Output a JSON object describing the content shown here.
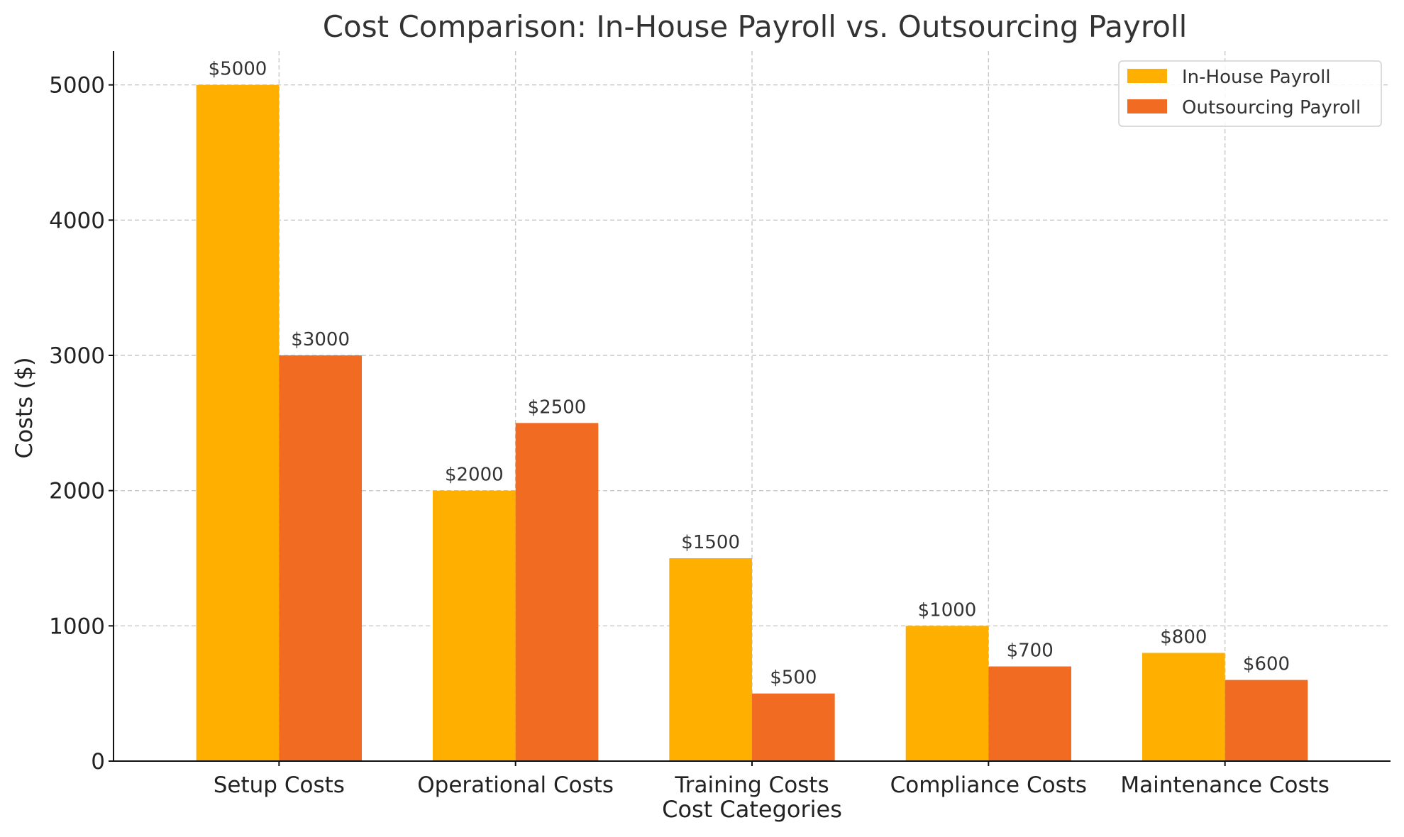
{
  "chart_data": {
    "type": "bar",
    "title": "Cost Comparison: In-House Payroll vs. Outsourcing Payroll",
    "xlabel": "Cost Categories",
    "ylabel": "Costs ($)",
    "categories": [
      "Setup Costs",
      "Operational Costs",
      "Training Costs",
      "Compliance Costs",
      "Maintenance Costs"
    ],
    "series": [
      {
        "name": "In-House Payroll",
        "values": [
          5000,
          2000,
          1500,
          1000,
          800
        ],
        "labels": [
          "$5000",
          "$2000",
          "$1500",
          "$1000",
          "$800"
        ],
        "color": "#FFAF00"
      },
      {
        "name": "Outsourcing Payroll",
        "values": [
          3000,
          2500,
          500,
          700,
          600
        ],
        "labels": [
          "$3000",
          "$2500",
          "$500",
          "$700",
          "$600"
        ],
        "color": "#F26B22"
      }
    ],
    "ylim": [
      0,
      5250
    ],
    "yticks": [
      0,
      1000,
      2000,
      3000,
      4000,
      5000
    ],
    "grid": true,
    "legend_position": "top-right"
  }
}
